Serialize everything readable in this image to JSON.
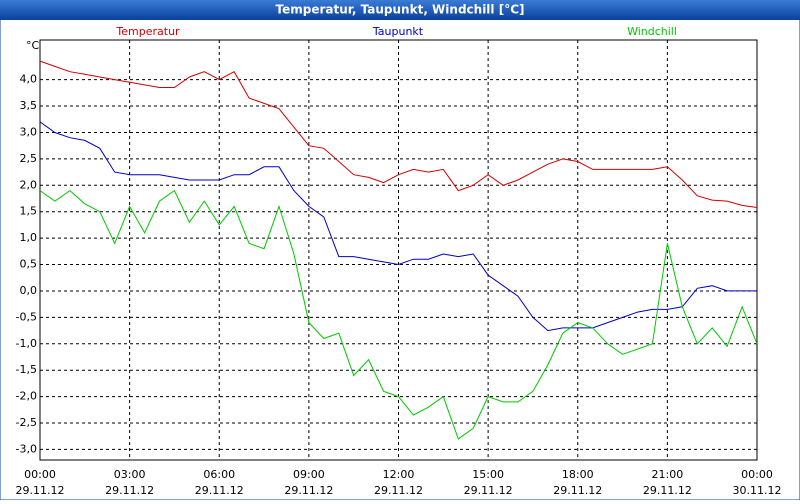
{
  "chart_data": {
    "type": "line",
    "title": "Temperatur, Taupunkt, Windchill [°C]",
    "y_label": "°C",
    "xlim": [
      0,
      24
    ],
    "xticks": [
      {
        "value": 0,
        "label": "00:00"
      },
      {
        "value": 3,
        "label": "03:00"
      },
      {
        "value": 6,
        "label": "06:00"
      },
      {
        "value": 9,
        "label": "09:00"
      },
      {
        "value": 12,
        "label": "12:00"
      },
      {
        "value": 15,
        "label": "15:00"
      },
      {
        "value": 18,
        "label": "18:00"
      },
      {
        "value": 21,
        "label": "21:00"
      },
      {
        "value": 24,
        "label": "00:00"
      }
    ],
    "xtick_dates": [
      "29.11.12",
      "29.11.12",
      "29.11.12",
      "29.11.12",
      "29.11.12",
      "29.11.12",
      "29.11.12",
      "29.11.12",
      "30.11.12"
    ],
    "ylim": [
      -3.2,
      4.75
    ],
    "yticks": [
      {
        "value": -3,
        "label": "-3,0"
      },
      {
        "value": -2.5,
        "label": "-2,5"
      },
      {
        "value": -2,
        "label": "-2,0"
      },
      {
        "value": -1.5,
        "label": "-1,5"
      },
      {
        "value": -1,
        "label": "-1,0"
      },
      {
        "value": -0.5,
        "label": "-0,5"
      },
      {
        "value": 0,
        "label": "0,0"
      },
      {
        "value": 0.5,
        "label": "0,5"
      },
      {
        "value": 1,
        "label": "1,0"
      },
      {
        "value": 1.5,
        "label": "1,5"
      },
      {
        "value": 2,
        "label": "2,0"
      },
      {
        "value": 2.5,
        "label": "2,5"
      },
      {
        "value": 3,
        "label": "3,0"
      },
      {
        "value": 3.5,
        "label": "3,5"
      },
      {
        "value": 4,
        "label": "4,0"
      }
    ],
    "grid": true,
    "x": [
      0,
      0.5,
      1,
      1.5,
      2,
      2.5,
      3,
      3.5,
      4,
      4.5,
      5,
      5.5,
      6,
      6.5,
      7,
      7.5,
      8,
      8.5,
      9,
      9.5,
      10,
      10.5,
      11,
      11.5,
      12,
      12.5,
      13,
      13.5,
      14,
      14.5,
      15,
      15.5,
      16,
      16.5,
      17,
      17.5,
      18,
      18.5,
      19,
      19.5,
      20,
      20.5,
      21,
      21.5,
      22,
      22.5,
      23,
      23.5,
      24
    ],
    "series": [
      {
        "name": "Temperatur",
        "color": "#d40000",
        "values": [
          4.35,
          4.25,
          4.15,
          4.1,
          4.05,
          4.0,
          3.95,
          3.9,
          3.85,
          3.85,
          4.05,
          4.15,
          4.0,
          4.15,
          3.65,
          3.55,
          3.45,
          3.1,
          2.75,
          2.7,
          2.45,
          2.2,
          2.15,
          2.05,
          2.2,
          2.3,
          2.25,
          2.3,
          1.9,
          2.0,
          2.2,
          2.0,
          2.1,
          2.25,
          2.4,
          2.5,
          2.45,
          2.3,
          2.3,
          2.3,
          2.3,
          2.3,
          2.35,
          2.1,
          1.8,
          1.72,
          1.7,
          1.62,
          1.58
        ]
      },
      {
        "name": "Taupunkt",
        "color": "#0000c8",
        "values": [
          3.2,
          3.0,
          2.9,
          2.85,
          2.7,
          2.25,
          2.2,
          2.2,
          2.2,
          2.15,
          2.1,
          2.1,
          2.1,
          2.2,
          2.2,
          2.35,
          2.35,
          1.9,
          1.6,
          1.4,
          0.65,
          0.65,
          0.6,
          0.55,
          0.5,
          0.6,
          0.6,
          0.7,
          0.65,
          0.7,
          0.3,
          0.1,
          -0.1,
          -0.5,
          -0.75,
          -0.7,
          -0.7,
          -0.7,
          -0.6,
          -0.5,
          -0.4,
          -0.35,
          -0.35,
          -0.3,
          0.05,
          0.1,
          0.0,
          0.0,
          0.0
        ]
      },
      {
        "name": "Windchill",
        "color": "#00c800",
        "values": [
          1.9,
          1.7,
          1.9,
          1.65,
          1.5,
          0.9,
          1.6,
          1.1,
          1.7,
          1.9,
          1.3,
          1.7,
          1.25,
          1.6,
          0.9,
          0.8,
          1.6,
          0.7,
          -0.6,
          -0.9,
          -0.8,
          -1.6,
          -1.3,
          -1.9,
          -2.0,
          -2.35,
          -2.2,
          -2.0,
          -2.8,
          -2.6,
          -2.0,
          -2.1,
          -2.1,
          -1.9,
          -1.4,
          -0.8,
          -0.6,
          -0.7,
          -1.0,
          -1.2,
          -1.1,
          -1.0,
          0.9,
          -0.3,
          -1.0,
          -0.7,
          -1.05,
          -0.3,
          -1.0
        ]
      }
    ]
  }
}
